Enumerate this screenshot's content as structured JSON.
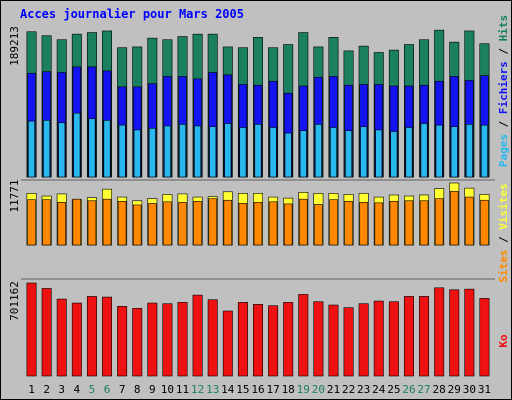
{
  "chart_data": {
    "type": "bar",
    "title": "Acces journalier pour Mars 2005",
    "categories": [
      "1",
      "2",
      "3",
      "4",
      "5",
      "6",
      "7",
      "8",
      "9",
      "10",
      "11",
      "12",
      "13",
      "14",
      "15",
      "16",
      "17",
      "18",
      "19",
      "20",
      "21",
      "22",
      "23",
      "24",
      "25",
      "26",
      "27",
      "28",
      "29",
      "30",
      "31"
    ],
    "weekend_days": [
      "5",
      "6",
      "12",
      "13",
      "19",
      "20",
      "26",
      "27"
    ],
    "panels": [
      {
        "id": "pages",
        "ymax_label": "189213",
        "ylim": [
          0,
          189213
        ],
        "right_label_parts": [
          "Pages",
          " / ",
          "Fichiers",
          " / ",
          "Hits"
        ],
        "series": [
          {
            "name": "Hits",
            "values": [
              182000,
              177000,
              172000,
              179000,
              181000,
              183000,
              162000,
              163000,
              174000,
              172000,
              176000,
              179000,
              179000,
              163000,
              162000,
              175000,
              162000,
              166000,
              181000,
              163000,
              175000,
              158000,
              164000,
              156000,
              159000,
              166000,
              172000,
              184000,
              169000,
              183000,
              167000
            ]
          },
          {
            "name": "Fichiers",
            "values": [
              130000,
              132000,
              131000,
              138000,
              138000,
              133000,
              113000,
              113000,
              117000,
              126000,
              126000,
              123000,
              131000,
              128000,
              116000,
              115000,
              120000,
              105000,
              114000,
              125000,
              126000,
              115000,
              116000,
              116000,
              114000,
              114000,
              115000,
              120000,
              126000,
              121000,
              127000
            ]
          },
          {
            "name": "Pages",
            "values": [
              70000,
              71000,
              68000,
              80000,
              73000,
              71000,
              65000,
              59000,
              61000,
              64000,
              66000,
              64000,
              63000,
              67000,
              62000,
              66000,
              62000,
              55000,
              58000,
              66000,
              62000,
              58000,
              63000,
              59000,
              57000,
              62000,
              67000,
              65000,
              63000,
              66000,
              65000
            ]
          }
        ]
      },
      {
        "id": "visits",
        "ymax_label": "11771",
        "ylim": [
          0,
          11771
        ],
        "right_label_parts": [
          "Sites",
          " / ",
          "Visites"
        ],
        "series": [
          {
            "name": "Visites",
            "values": [
              9800,
              9300,
              9700,
              8600,
              9000,
              10600,
              9100,
              8400,
              8800,
              9600,
              9700,
              9100,
              9200,
              10100,
              9800,
              9800,
              9100,
              8900,
              10000,
              9800,
              9800,
              9600,
              9800,
              9100,
              9500,
              9300,
              9500,
              10700,
              11771,
              10800,
              9600
            ]
          },
          {
            "name": "Sites",
            "values": [
              8600,
              8600,
              8100,
              8700,
              8400,
              8700,
              8300,
              7600,
              7900,
              8200,
              8100,
              8300,
              8800,
              8500,
              7900,
              8100,
              8200,
              7800,
              8700,
              7700,
              8600,
              8300,
              8100,
              8000,
              8300,
              8400,
              8400,
              8800,
              10200,
              9100,
              8500
            ]
          }
        ]
      },
      {
        "id": "ko",
        "ymax_label": "701162",
        "ylim": [
          0,
          701162
        ],
        "right_label_parts": [
          "Ko"
        ],
        "series": [
          {
            "name": "Ko",
            "values": [
              701162,
              660000,
              580000,
              550000,
              600000,
              595000,
              525000,
              510000,
              550000,
              545000,
              555000,
              610000,
              575000,
              490000,
              555000,
              540000,
              530000,
              555000,
              615000,
              560000,
              535000,
              515000,
              545000,
              565000,
              560000,
              600000,
              600000,
              665000,
              650000,
              655000,
              585000
            ]
          }
        ]
      }
    ],
    "colors": {
      "title": "#0000ff",
      "Hits": "#1a8060",
      "Fichiers": "#1414f0",
      "Pages": "#28b8ee",
      "Visites": "#ffff33",
      "Sites": "#ff8800",
      "Ko": "#ee1111",
      "weekday_label": "#000000",
      "weekend_label": "#1a8060",
      "separator": "#606060"
    },
    "grid": false
  }
}
